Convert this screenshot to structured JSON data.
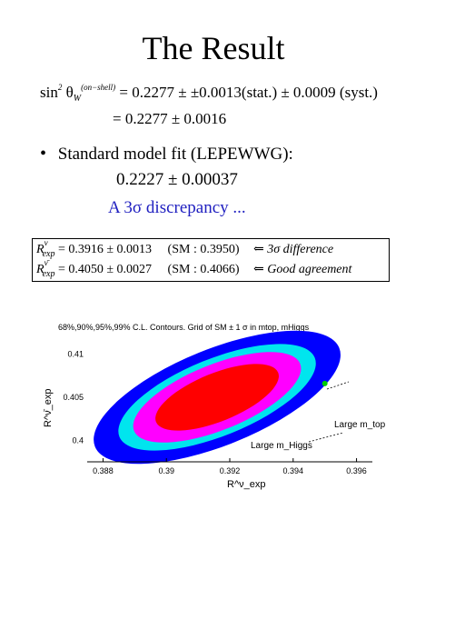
{
  "title": "The Result",
  "eq1": {
    "lhs_func": "sin",
    "lhs_sup": "2",
    "lhs_theta": "θ",
    "lhs_sub": "W",
    "lhs_label": "(on−shell)",
    "rhs": "= 0.2277 ± ±0.0013(stat.) ± 0.0009 (syst.)"
  },
  "eq2": "= 0.2277 ± 0.0016",
  "bullet": {
    "symbol": "•",
    "text": "Standard model fit (LEPEWWG):",
    "value": "0.2227 ± 0.00037"
  },
  "discrepancy": "A 3σ discrepancy ...",
  "rows": [
    {
      "sym": "R",
      "sup": "ν",
      "sub": "exp",
      "value": "= 0.3916 ± 0.0013",
      "sm": "(SM : 0.3950)",
      "arrow": "⇐",
      "note": "3σ difference"
    },
    {
      "sym": "R",
      "sup": "ν̄",
      "sub": "exp",
      "value": "= 0.4050 ± 0.0027",
      "sm": "(SM : 0.4066)",
      "arrow": "⇐",
      "note": "Good agreement"
    }
  ],
  "colors": {
    "blue": "#2020c0",
    "outer": "#0000ff",
    "cyan": "#00e5ee",
    "magenta": "#ff00ff",
    "red": "#ff0000",
    "point": "#00cc00"
  },
  "chart_data": {
    "type": "contour",
    "title": "68%,90%,95%,99% C.L. Contours. Grid of SM ± 1 σ in mtop, mHiggs",
    "xlabel": "R^ν_exp",
    "ylabel": "R^ν̄_exp",
    "xlim": [
      0.3875,
      0.3965
    ],
    "ylim": [
      0.3975,
      0.4125
    ],
    "xticks": [
      0.388,
      0.39,
      0.392,
      0.394,
      0.396
    ],
    "xtick_labels": [
      "0.388",
      "0.39",
      "0.392",
      "0.394",
      "0.396"
    ],
    "yticks": [
      0.4,
      0.405,
      0.41
    ],
    "ytick_labels": [
      "0.4",
      "0.405",
      "0.41"
    ],
    "center": [
      0.3916,
      0.405
    ],
    "contours": [
      "68%",
      "90%",
      "95%",
      "99%"
    ],
    "sm_point": [
      0.395,
      0.4066
    ],
    "annotations": [
      "Large m_top",
      "Large m_Higgs"
    ]
  }
}
